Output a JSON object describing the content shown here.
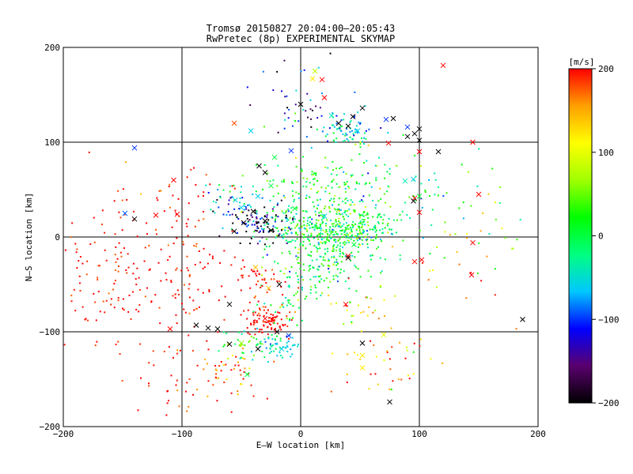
{
  "chart_data": {
    "type": "scatter",
    "title": "Tromsø 20150827 20:04:00–20:05:43",
    "subtitle": "RwPretec (8p) EXPERIMENTAL SKYMAP",
    "xlabel": "E–W location [km]",
    "ylabel": "N–S location [km]",
    "xlim": [
      -200,
      200
    ],
    "ylim": [
      -200,
      200
    ],
    "x_ticks": [
      -200,
      -100,
      0,
      100,
      200
    ],
    "y_ticks": [
      -200,
      -100,
      0,
      100,
      200
    ],
    "x_tick_labels": [
      "−200",
      "−100",
      "0",
      "100",
      "200"
    ],
    "y_tick_labels": [
      "−200",
      "−100",
      "0",
      "100",
      "200"
    ],
    "grid": true,
    "colorbar": {
      "label": "[m/s]",
      "range": [
        -200,
        200
      ],
      "ticks": [
        200,
        100,
        0,
        -100,
        -200
      ],
      "tick_labels": [
        "200",
        "100",
        "0",
        "−100",
        "−200"
      ],
      "colormap": [
        "#000000",
        "#5a006e",
        "#0000ff",
        "#00c8ff",
        "#00ff80",
        "#00ff00",
        "#a0ff00",
        "#ffff00",
        "#ffa000",
        "#ff0000"
      ]
    },
    "marker_legend": {
      "x": "large echo marker",
      "dot": "small echo marker"
    },
    "x_markers": [
      {
        "x": -42,
        "y": 112,
        "v": -60
      },
      {
        "x": -56,
        "y": 120,
        "v": 180
      },
      {
        "x": -140,
        "y": 94,
        "v": -100
      },
      {
        "x": -148,
        "y": 25,
        "v": -90
      },
      {
        "x": -140,
        "y": 19,
        "v": -200
      },
      {
        "x": -122,
        "y": 23,
        "v": 200
      },
      {
        "x": -107,
        "y": 60,
        "v": 200
      },
      {
        "x": -110,
        "y": -97,
        "v": 200
      },
      {
        "x": -88,
        "y": -93,
        "v": -200
      },
      {
        "x": -78,
        "y": -96,
        "v": -200
      },
      {
        "x": -70,
        "y": -97,
        "v": -200
      },
      {
        "x": -60,
        "y": -113,
        "v": -200
      },
      {
        "x": -50,
        "y": -112,
        "v": 60
      },
      {
        "x": -45,
        "y": -145,
        "v": 0
      },
      {
        "x": -36,
        "y": -118,
        "v": -200
      },
      {
        "x": -30,
        "y": -86,
        "v": 200
      },
      {
        "x": -24,
        "y": -87,
        "v": 200
      },
      {
        "x": -20,
        "y": -100,
        "v": -200
      },
      {
        "x": -16,
        "y": -118,
        "v": -60
      },
      {
        "x": -10,
        "y": -104,
        "v": -100
      },
      {
        "x": -25,
        "y": 7,
        "v": -200
      },
      {
        "x": -30,
        "y": 17,
        "v": -200
      },
      {
        "x": -40,
        "y": 27,
        "v": -200
      },
      {
        "x": -50,
        "y": 31,
        "v": -60
      },
      {
        "x": -55,
        "y": 39,
        "v": -60
      },
      {
        "x": -36,
        "y": 43,
        "v": -60
      },
      {
        "x": -25,
        "y": 54,
        "v": 0
      },
      {
        "x": -30,
        "y": 68,
        "v": -200
      },
      {
        "x": -35,
        "y": 75,
        "v": -200
      },
      {
        "x": -22,
        "y": 84,
        "v": 0
      },
      {
        "x": -8,
        "y": 91,
        "v": -100
      },
      {
        "x": 0,
        "y": 140,
        "v": -200
      },
      {
        "x": 10,
        "y": 167,
        "v": 120
      },
      {
        "x": 12,
        "y": 175,
        "v": 80
      },
      {
        "x": 18,
        "y": 166,
        "v": 200
      },
      {
        "x": 20,
        "y": 147,
        "v": 200
      },
      {
        "x": 26,
        "y": 128,
        "v": -40
      },
      {
        "x": 32,
        "y": 120,
        "v": -200
      },
      {
        "x": 40,
        "y": 117,
        "v": -200
      },
      {
        "x": 44,
        "y": 127,
        "v": -200
      },
      {
        "x": 48,
        "y": 112,
        "v": -60
      },
      {
        "x": 52,
        "y": 136,
        "v": -200
      },
      {
        "x": 72,
        "y": 124,
        "v": -100
      },
      {
        "x": 78,
        "y": 125,
        "v": -200
      },
      {
        "x": 90,
        "y": 116,
        "v": -100
      },
      {
        "x": 96,
        "y": 109,
        "v": -200
      },
      {
        "x": 100,
        "y": 114,
        "v": -200
      },
      {
        "x": 90,
        "y": 106,
        "v": -200
      },
      {
        "x": 100,
        "y": 102,
        "v": -200
      },
      {
        "x": 116,
        "y": 90,
        "v": -200
      },
      {
        "x": 100,
        "y": 90,
        "v": 200
      },
      {
        "x": 74,
        "y": 99,
        "v": 200
      },
      {
        "x": 95,
        "y": 61,
        "v": -60
      },
      {
        "x": 96,
        "y": 41,
        "v": 200
      },
      {
        "x": 95,
        "y": 38,
        "v": -200
      },
      {
        "x": 100,
        "y": 26,
        "v": 200
      },
      {
        "x": 120,
        "y": 181,
        "v": 200
      },
      {
        "x": 144,
        "y": -40,
        "v": 200
      },
      {
        "x": 145,
        "y": -6,
        "v": 200
      },
      {
        "x": 187,
        "y": -87,
        "v": -200
      },
      {
        "x": 145,
        "y": 100,
        "v": 200
      },
      {
        "x": 96,
        "y": -26,
        "v": 200
      },
      {
        "x": 102,
        "y": -24,
        "v": 200
      },
      {
        "x": 52,
        "y": -112,
        "v": -200
      },
      {
        "x": 52,
        "y": -125,
        "v": 120
      },
      {
        "x": 52,
        "y": -138,
        "v": 120
      },
      {
        "x": 75,
        "y": -174,
        "v": -200
      },
      {
        "x": 70,
        "y": -103,
        "v": 100
      },
      {
        "x": 38,
        "y": -71,
        "v": 200
      },
      {
        "x": 40,
        "y": -20,
        "v": 200
      },
      {
        "x": 40,
        "y": -22,
        "v": -200
      },
      {
        "x": 45,
        "y": -8,
        "v": 0
      },
      {
        "x": 20,
        "y": 22,
        "v": -60
      },
      {
        "x": -5,
        "y": 30,
        "v": 0
      },
      {
        "x": -48,
        "y": 15,
        "v": -200
      },
      {
        "x": -56,
        "y": 6,
        "v": -200
      },
      {
        "x": -18,
        "y": -50,
        "v": -200
      },
      {
        "x": -60,
        "y": -71,
        "v": -200
      },
      {
        "x": -27,
        "y": -54,
        "v": 140
      },
      {
        "x": -38,
        "y": -32,
        "v": 140
      },
      {
        "x": 100,
        "y": 43,
        "v": 0
      },
      {
        "x": 88,
        "y": 59,
        "v": -40
      },
      {
        "x": 150,
        "y": 45,
        "v": 200
      },
      {
        "x": -104,
        "y": 24,
        "v": 200
      }
    ],
    "clusters": [
      {
        "cx": 25,
        "cy": 5,
        "sx": 25,
        "sy": 13,
        "n": 360,
        "v": 0,
        "vs": 40
      },
      {
        "cx": 55,
        "cy": 10,
        "sx": 15,
        "sy": 15,
        "n": 90,
        "v": 0,
        "vs": 45
      },
      {
        "cx": 20,
        "cy": 55,
        "sx": 30,
        "sy": 18,
        "n": 170,
        "v": 20,
        "vs": 50
      },
      {
        "cx": 15,
        "cy": -35,
        "sx": 18,
        "sy": 14,
        "n": 130,
        "v": 0,
        "vs": 40
      },
      {
        "cx": -30,
        "cy": 15,
        "sx": 14,
        "sy": 12,
        "n": 110,
        "v": -140,
        "vs": 70
      },
      {
        "cx": -55,
        "cy": 35,
        "sx": 12,
        "sy": 10,
        "n": 50,
        "v": -70,
        "vs": 60
      },
      {
        "cx": -35,
        "cy": -48,
        "sx": 10,
        "sy": 10,
        "n": 40,
        "v": 200,
        "vs": 20
      },
      {
        "cx": -28,
        "cy": -88,
        "sx": 10,
        "sy": 8,
        "n": 90,
        "v": 200,
        "vs": 15
      },
      {
        "cx": -38,
        "cy": -112,
        "sx": 12,
        "sy": 10,
        "n": 50,
        "v": 10,
        "vs": 40
      },
      {
        "cx": -18,
        "cy": -115,
        "sx": 8,
        "sy": 7,
        "n": 40,
        "v": -60,
        "vs": 20
      },
      {
        "cx": 40,
        "cy": 113,
        "sx": 12,
        "sy": 8,
        "n": 70,
        "v": -50,
        "vs": 40
      },
      {
        "cx": 0,
        "cy": 140,
        "sx": 20,
        "sy": 20,
        "n": 45,
        "v": -120,
        "vs": 80
      },
      {
        "cx": -150,
        "cy": -40,
        "sx": 30,
        "sy": 35,
        "n": 140,
        "v": 200,
        "vs": 15
      },
      {
        "cx": -90,
        "cy": -50,
        "sx": 20,
        "sy": 30,
        "n": 60,
        "v": 200,
        "vs": 20
      },
      {
        "cx": -100,
        "cy": -150,
        "sx": 25,
        "sy": 18,
        "n": 40,
        "v": 200,
        "vs": 30
      },
      {
        "cx": -60,
        "cy": -140,
        "sx": 15,
        "sy": 12,
        "n": 40,
        "v": 150,
        "vs": 50
      },
      {
        "cx": 70,
        "cy": -130,
        "sx": 20,
        "sy": 18,
        "n": 40,
        "v": 150,
        "vs": 50
      },
      {
        "cx": 50,
        "cy": -75,
        "sx": 15,
        "sy": 12,
        "n": 30,
        "v": 120,
        "vs": 60
      },
      {
        "cx": 100,
        "cy": 40,
        "sx": 35,
        "sy": 30,
        "n": 60,
        "v": 0,
        "vs": 60
      },
      {
        "cx": -110,
        "cy": 40,
        "sx": 30,
        "sy": 25,
        "n": 40,
        "v": 200,
        "vs": 30
      },
      {
        "cx": 140,
        "cy": -20,
        "sx": 25,
        "sy": 30,
        "n": 30,
        "v": 120,
        "vs": 60
      },
      {
        "cx": -10,
        "cy": -70,
        "sx": 12,
        "sy": 10,
        "n": 30,
        "v": 0,
        "vs": 40
      }
    ]
  }
}
